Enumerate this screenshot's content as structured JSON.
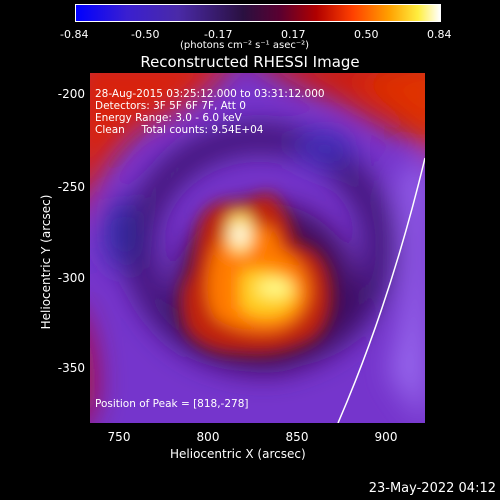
{
  "colorbar": {
    "ticks": [
      "-0.84",
      "-0.50",
      "-0.17",
      "0.17",
      "0.50",
      "0.84"
    ],
    "unit_line": "(photons cm⁻² s⁻¹ asec⁻²)"
  },
  "title": "Reconstructed RHESSI Image",
  "info": {
    "line1": "28-Aug-2015 03:25:12.000 to 03:31:12.000",
    "line2": "Detectors: 3F 5F 6F 7F, Att 0",
    "line3": "Energy Range: 3.0 - 6.0 keV",
    "line4": "Clean     Total counts: 9.54E+04",
    "peak": "Position of Peak = [818,-278]"
  },
  "axes": {
    "xlabel": "Heliocentric X (arcsec)",
    "ylabel": "Heliocentric Y (arcsec)",
    "xticks": [
      "750",
      "800",
      "850",
      "900"
    ],
    "yticks": [
      "-200",
      "-250",
      "-300",
      "-350"
    ]
  },
  "footer": {
    "date": "23-May-2022 04:12"
  }
}
